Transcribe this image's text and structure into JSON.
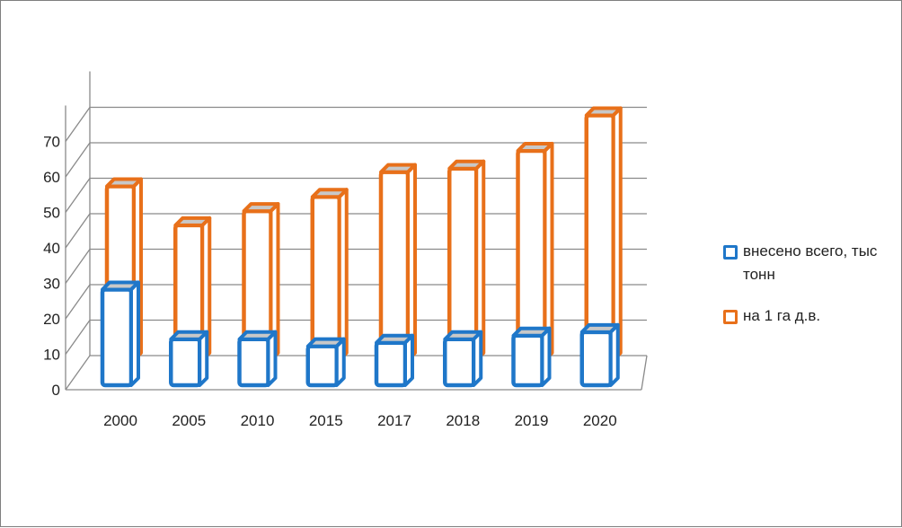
{
  "chart_data": {
    "type": "bar",
    "categories": [
      "2000",
      "2005",
      "2010",
      "2015",
      "2017",
      "2018",
      "2019",
      "2020"
    ],
    "series": [
      {
        "name": "внесено всего, тыс тонн",
        "color": "#1f77c9",
        "values": [
          29,
          15,
          15,
          13,
          14,
          15,
          16,
          17
        ]
      },
      {
        "name": "на 1 га д.в.",
        "color": "#e8701a",
        "values": [
          49,
          38,
          42,
          46,
          53,
          54,
          59,
          69
        ]
      }
    ],
    "y_ticks": [
      "0",
      "10",
      "20",
      "30",
      "40",
      "50",
      "60",
      "70"
    ],
    "ylim": [
      0,
      70
    ],
    "grid": true,
    "legend_position": "right",
    "style": "3d-clustered-bar"
  }
}
